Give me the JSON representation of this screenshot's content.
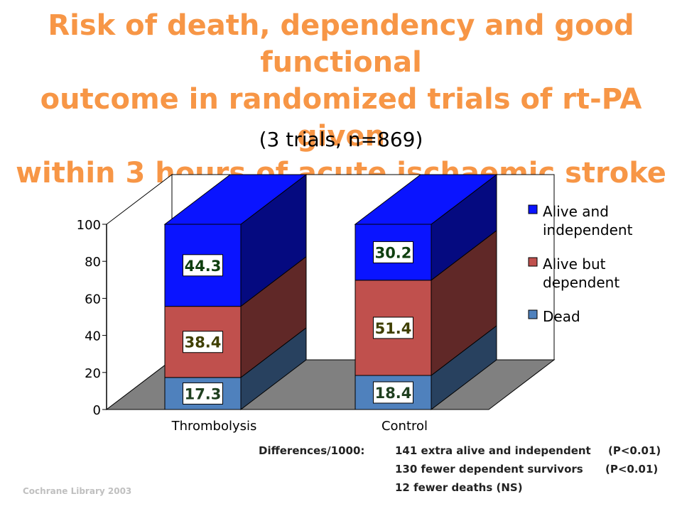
{
  "title_lines": [
    "Risk of death, dependency and good functional",
    "outcome in randomized trials of rt-PA given",
    "within 3 hours of acute ischaemic stroke"
  ],
  "subtitle": "(3 trials, n=869)",
  "chart_data": {
    "type": "bar",
    "stacked": true,
    "three_d": true,
    "categories": [
      "Thrombolysis",
      "Control"
    ],
    "series": [
      {
        "name": "Dead",
        "values": [
          17.3,
          18.4
        ],
        "color": "#4f81bd",
        "label_color": "#1f3f1f"
      },
      {
        "name": "Alive but dependent",
        "values": [
          38.4,
          51.4
        ],
        "color": "#c0504d",
        "label_color": "#3f3f00"
      },
      {
        "name": "Alive and independent",
        "values": [
          44.3,
          30.2
        ],
        "color": "#0a14ff",
        "label_color": "#0f3f0f"
      }
    ],
    "data_labels": [
      [
        "17.3",
        "18.4"
      ],
      [
        "38.4",
        "51.4"
      ],
      [
        "44.3",
        "30.2"
      ]
    ],
    "y_ticks": [
      "0",
      "20",
      "40",
      "60",
      "80",
      "100"
    ],
    "ylim": [
      0,
      100
    ],
    "legend": {
      "position": "right",
      "entries": [
        {
          "lines": [
            "Alive and",
            "independent"
          ],
          "color": "#0a14ff"
        },
        {
          "lines": [
            "Alive but",
            "dependent"
          ],
          "color": "#c0504d"
        },
        {
          "lines": [
            "Dead"
          ],
          "color": "#4f81bd"
        }
      ]
    }
  },
  "differences": {
    "label": "Differences/1000:",
    "rows": [
      {
        "text": "141 extra alive and independent",
        "p": "(P<0.01)"
      },
      {
        "text": "130 fewer dependent survivors",
        "p": "(P<0.01)"
      },
      {
        "text": "12 fewer deaths (NS)",
        "p": ""
      }
    ]
  },
  "source": "Cochrane Library 2003"
}
